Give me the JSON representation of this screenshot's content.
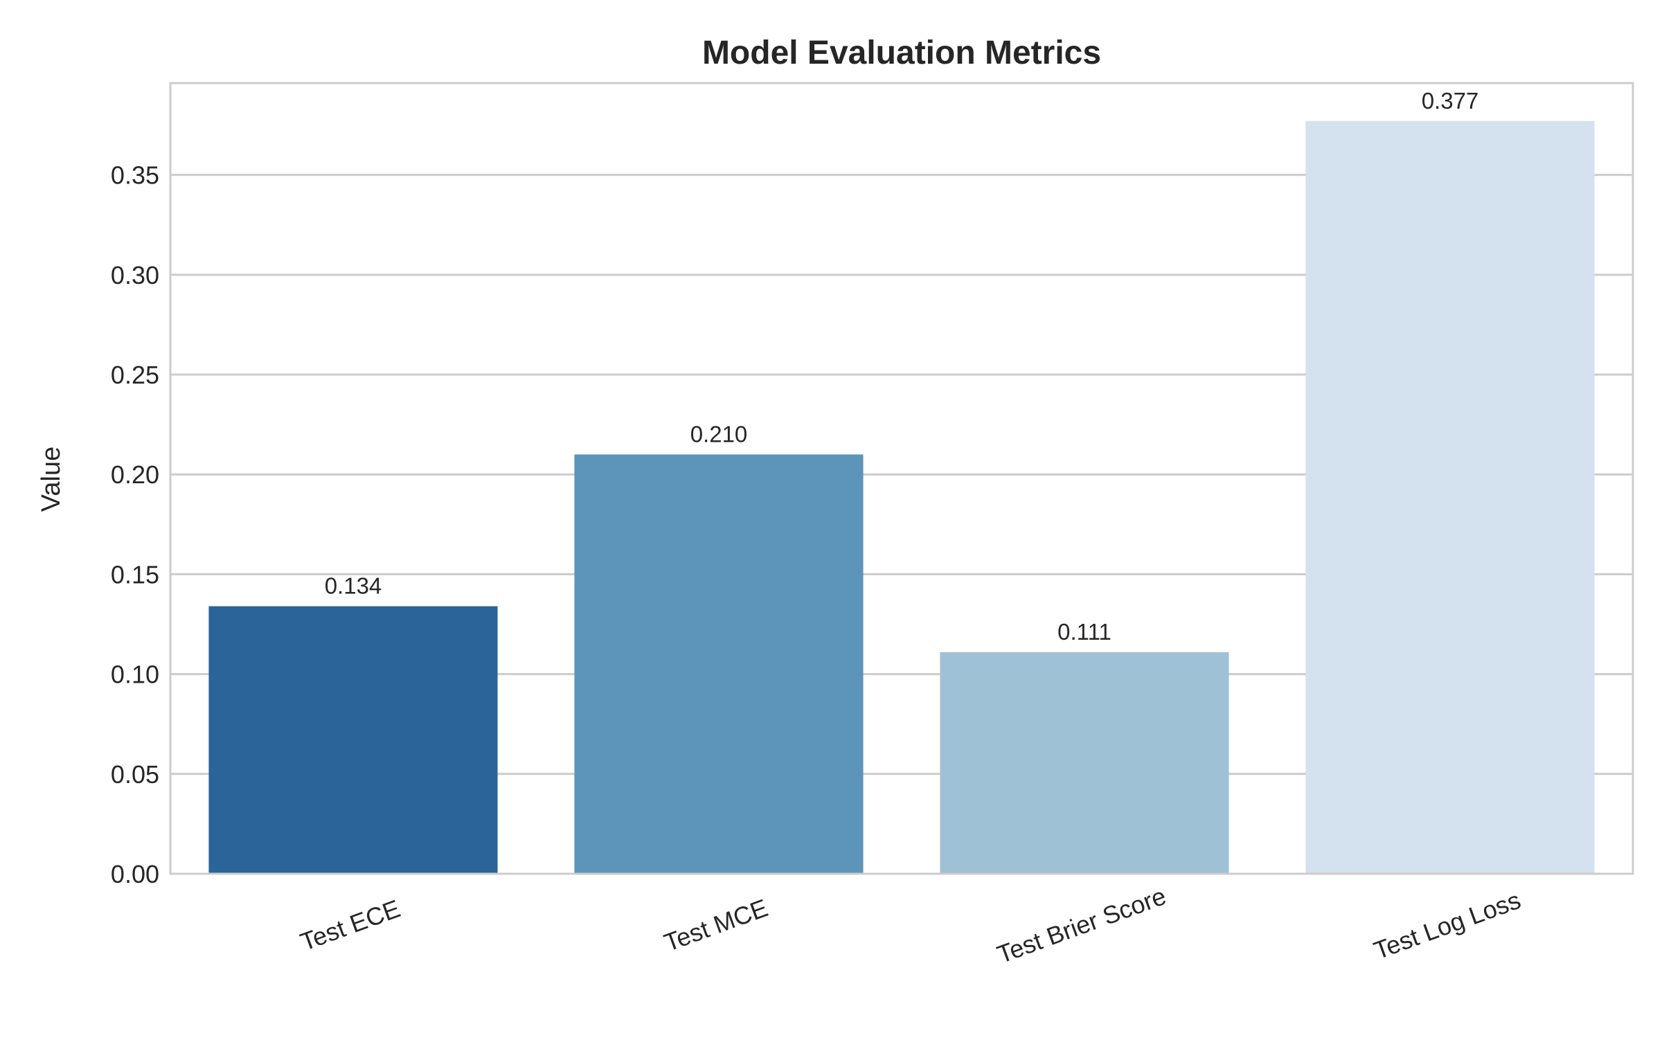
{
  "chart_data": {
    "type": "bar",
    "title": "Model Evaluation Metrics",
    "xlabel": "",
    "ylabel": "Value",
    "categories": [
      "Test ECE",
      "Test MCE",
      "Test Brier Score",
      "Test Log Loss"
    ],
    "values": [
      0.134,
      0.21,
      0.111,
      0.377
    ],
    "data_labels": [
      "0.134",
      "0.210",
      "0.111",
      "0.377"
    ],
    "colors": [
      "#2b6498",
      "#5d95ba",
      "#9ec1d5",
      "#d4e1ee"
    ],
    "ylim": [
      0,
      0.396
    ],
    "yticks": [
      0.0,
      0.05,
      0.1,
      0.15,
      0.2,
      0.25,
      0.3,
      0.35
    ],
    "ytick_labels": [
      "0.00",
      "0.05",
      "0.10",
      "0.15",
      "0.20",
      "0.25",
      "0.30",
      "0.35"
    ],
    "grid": true,
    "grid_axis": "y",
    "legend": false,
    "grid_color": "#cccccc",
    "text_color": "#262626"
  }
}
